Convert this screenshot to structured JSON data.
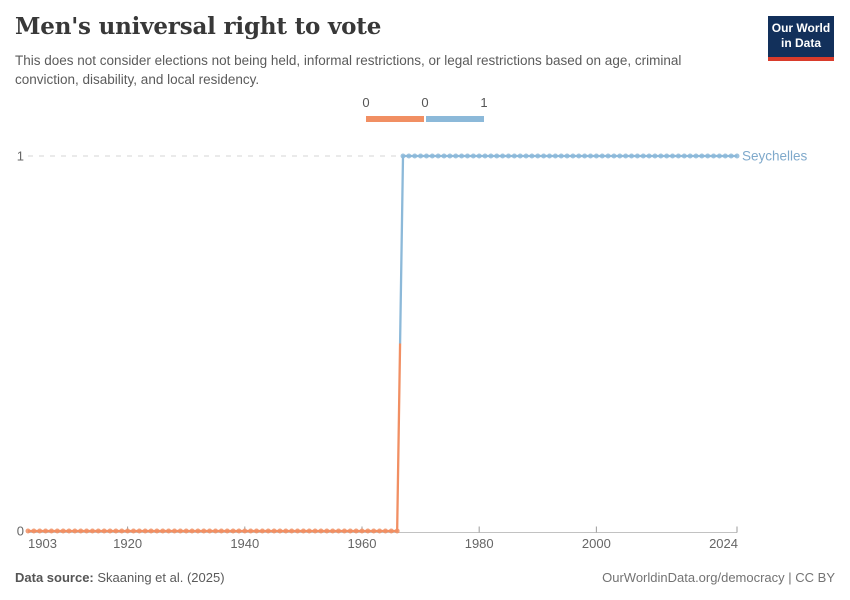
{
  "header": {
    "title": "Men's universal right to vote",
    "subtitle": "This does not consider elections not being held, informal restrictions, or legal restrictions based on age, criminal conviction, disability, and local residency.",
    "logo": {
      "line1": "Our World",
      "line2": "in Data"
    }
  },
  "legend": {
    "edge_labels": [
      "0",
      "0",
      "1"
    ],
    "bin_colors": [
      "#F18F63",
      "#8CB9D9"
    ]
  },
  "chart_data": {
    "type": "line",
    "title": "Men's universal right to vote",
    "entity_label": "Seychelles",
    "xlim": [
      1903,
      2024
    ],
    "ylim": [
      0,
      1
    ],
    "x_ticks": [
      1903,
      1920,
      1940,
      1960,
      1980,
      2000,
      2024
    ],
    "y_ticks": [
      0,
      1
    ],
    "grid": "dashed-line-at-top-value",
    "legend_position": "top-center",
    "markers": "yearly-dots",
    "series": [
      {
        "name": "Seychelles",
        "segments": [
          {
            "from_year": 1903,
            "to_year": 1966,
            "value": 0,
            "color": "#F18F63"
          },
          {
            "from_year": 1967,
            "to_year": 2024,
            "value": 1,
            "color": "#8CB9D9"
          }
        ]
      }
    ]
  },
  "footer": {
    "source_label": "Data source:",
    "source_value": " Skaaning et al. (2025)",
    "credit": "OurWorldinData.org/democracy | CC BY"
  },
  "colors": {
    "orange": "#F18F63",
    "blue": "#8CB9D9",
    "entity_label": "#7FA9CB",
    "gridline": "#d6d6d6",
    "axis_line": "#c2c2c2",
    "tick_mark": "#9b9b9b",
    "axis_text": "#666666",
    "logo_bg": "#12305B",
    "logo_bar": "#D93B2B"
  }
}
